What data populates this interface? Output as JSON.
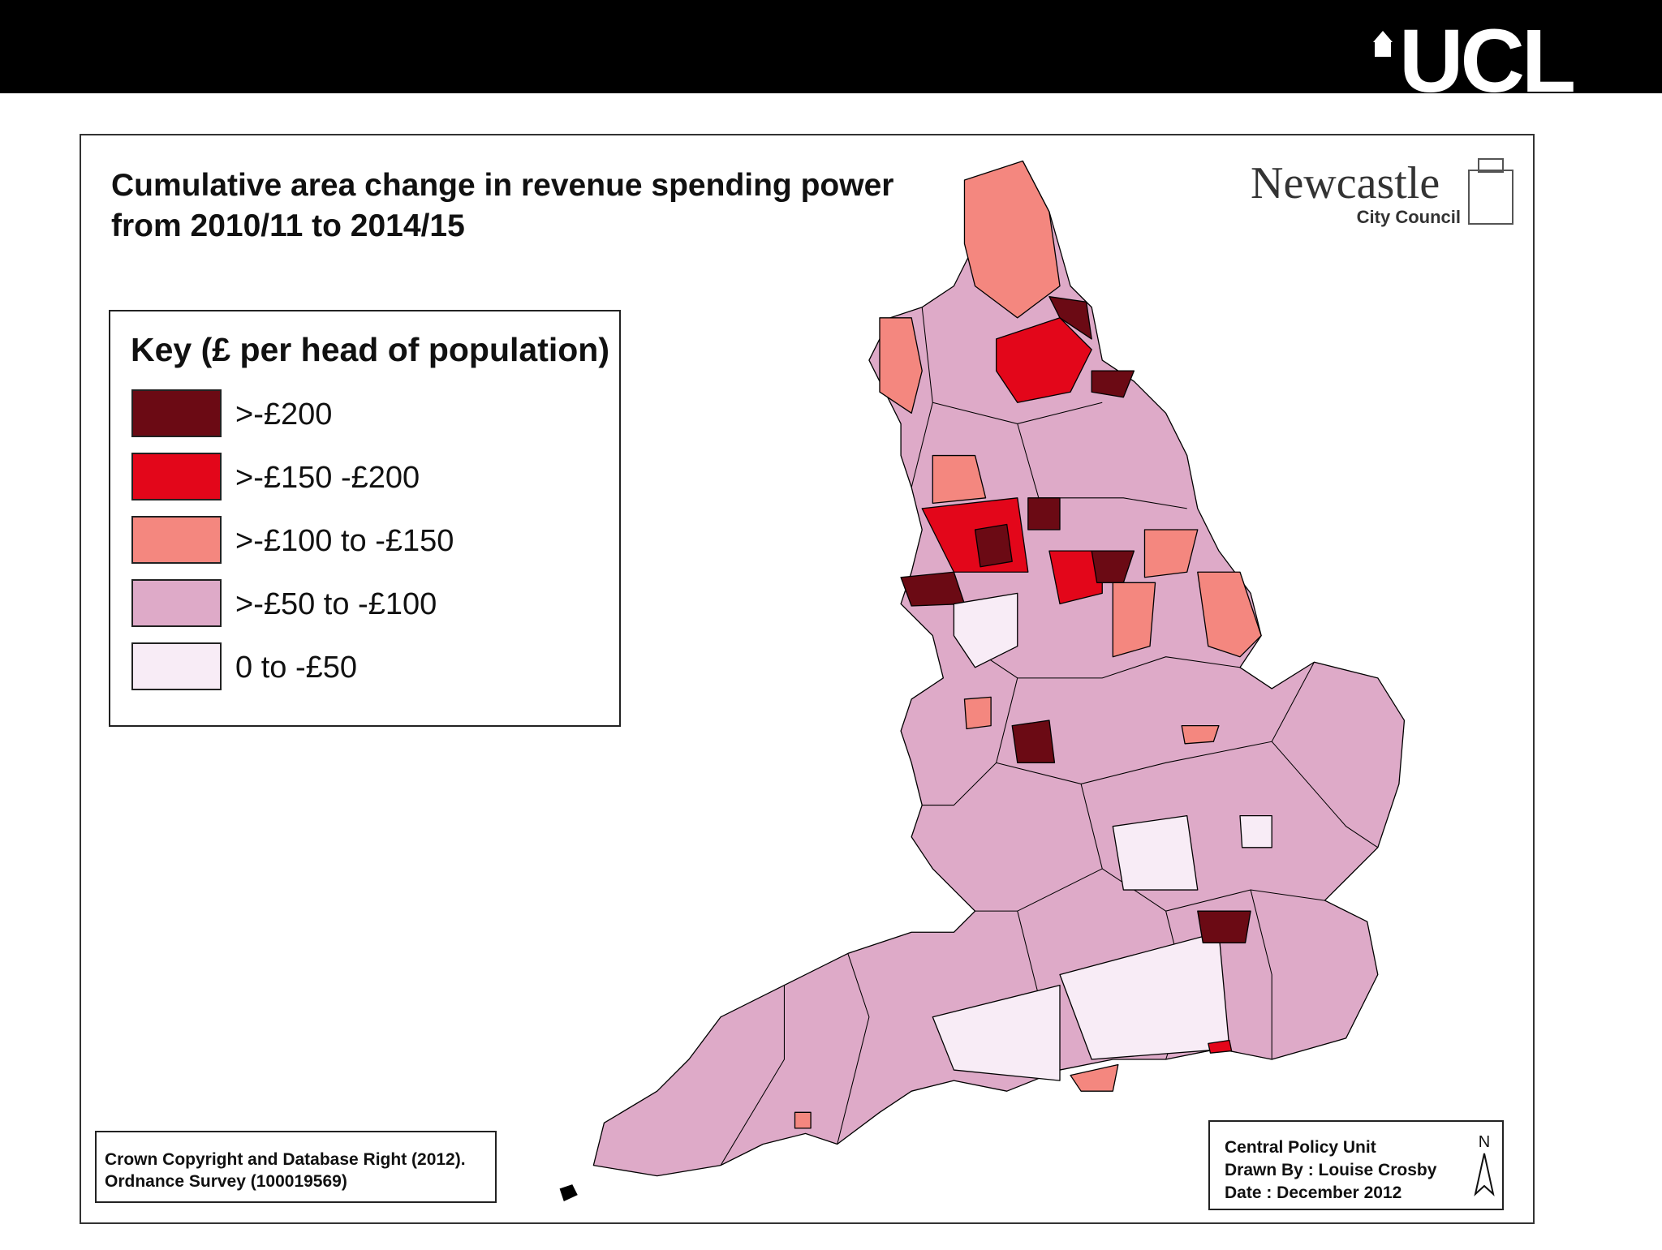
{
  "header": {
    "logo": "UCL"
  },
  "map": {
    "title_lines": [
      "Cumulative area change in revenue spending power",
      "from 2010/11 to 2014/15"
    ],
    "logo": {
      "name": "Newcastle",
      "subtitle": "City Council"
    },
    "legend": {
      "title": "Key (£ per head of population)",
      "items": [
        {
          "label": ">-£200",
          "color": "#6b0a14"
        },
        {
          "label": ">-£150 -£200",
          "color": "#e3061a"
        },
        {
          "label": ">-£100 to -£150",
          "color": "#f4877f"
        },
        {
          "label": ">-£50 to -£100",
          "color": "#deaac8"
        },
        {
          "label": "0 to -£50",
          "color": "#f8ecf6"
        }
      ]
    },
    "copyright": [
      "Crown Copyright and Database Right (2012).",
      "Ordnance Survey (100019569)"
    ],
    "credits": [
      "Central Policy Unit",
      "Drawn By : Louise Crosby",
      "Date : December 2012"
    ],
    "north_label": "N"
  }
}
